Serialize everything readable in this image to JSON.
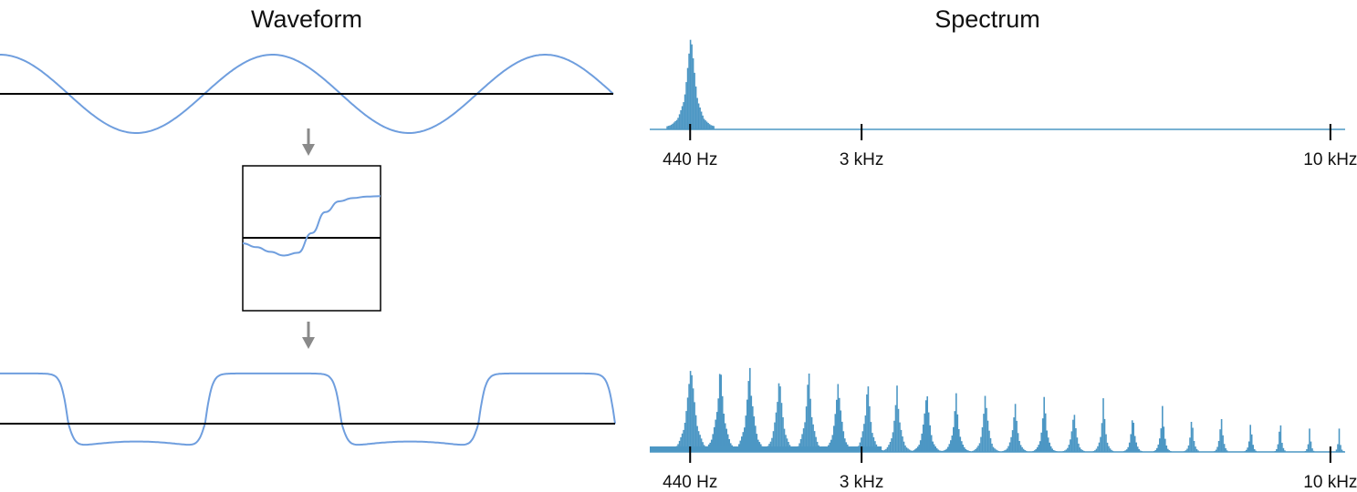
{
  "titles": {
    "left": "Waveform",
    "right": "Spectrum"
  },
  "colors": {
    "signal": "#6f9ede",
    "bars": "#4c97c4",
    "axis": "#000000",
    "arrow": "#8a8a8a"
  },
  "chart_data": [
    {
      "type": "line",
      "panel": "input-waveform",
      "title": "Waveform",
      "series": [
        {
          "shape": "sine",
          "cycles": 2.25,
          "phase_start": "positive-peak",
          "amplitude": 1.0
        }
      ],
      "ylim": [
        -1,
        1
      ]
    },
    {
      "type": "line",
      "panel": "transfer-curve",
      "x": [
        -1,
        -0.8,
        -0.6,
        -0.4,
        -0.2,
        0,
        0.2,
        0.4,
        0.6,
        0.8,
        1
      ],
      "y": [
        -0.12,
        -0.2,
        -0.3,
        -0.38,
        -0.32,
        0.1,
        0.55,
        0.78,
        0.85,
        0.88,
        0.89
      ],
      "xlim": [
        -1,
        1
      ],
      "ylim": [
        -1,
        1
      ]
    },
    {
      "type": "line",
      "panel": "output-waveform",
      "series": [
        {
          "shape": "clipped",
          "cycles": 2.25,
          "high_level": 0.95,
          "low_level": -0.45
        }
      ],
      "ylim": [
        -1,
        1
      ]
    },
    {
      "type": "bar",
      "panel": "input-spectrum",
      "title": "Spectrum",
      "fundamental_hz": 440,
      "peaks": [
        {
          "freq_hz": 440,
          "amplitude": 1.0
        }
      ],
      "xlim_hz": [
        0,
        10600
      ],
      "ticks": [
        {
          "freq_hz": 440,
          "label": "440 Hz"
        },
        {
          "freq_hz": 3000,
          "label": "3 kHz"
        },
        {
          "freq_hz": 10000,
          "label": "10 kHz"
        }
      ]
    },
    {
      "type": "bar",
      "panel": "output-spectrum",
      "fundamental_hz": 440,
      "peaks": [
        {
          "freq_hz": 440,
          "amplitude": 1.0
        },
        {
          "freq_hz": 880,
          "amplitude": 0.91
        },
        {
          "freq_hz": 1320,
          "amplitude": 0.93
        },
        {
          "freq_hz": 1760,
          "amplitude": 0.84
        },
        {
          "freq_hz": 2200,
          "amplitude": 0.86
        },
        {
          "freq_hz": 2640,
          "amplitude": 0.8
        },
        {
          "freq_hz": 3080,
          "amplitude": 0.76
        },
        {
          "freq_hz": 3520,
          "amplitude": 0.69
        },
        {
          "freq_hz": 3960,
          "amplitude": 0.73
        },
        {
          "freq_hz": 4400,
          "amplitude": 0.61
        },
        {
          "freq_hz": 4840,
          "amplitude": 0.69
        },
        {
          "freq_hz": 5280,
          "amplitude": 0.55
        },
        {
          "freq_hz": 5720,
          "amplitude": 0.61
        },
        {
          "freq_hz": 6160,
          "amplitude": 0.5
        },
        {
          "freq_hz": 6600,
          "amplitude": 0.56
        },
        {
          "freq_hz": 7040,
          "amplitude": 0.44
        },
        {
          "freq_hz": 7480,
          "amplitude": 0.51
        },
        {
          "freq_hz": 7920,
          "amplitude": 0.39
        },
        {
          "freq_hz": 8360,
          "amplitude": 0.45
        },
        {
          "freq_hz": 8800,
          "amplitude": 0.34
        },
        {
          "freq_hz": 9240,
          "amplitude": 0.39
        },
        {
          "freq_hz": 9680,
          "amplitude": 0.29
        },
        {
          "freq_hz": 10120,
          "amplitude": 0.24
        },
        {
          "freq_hz": 10560,
          "amplitude": 0.28
        }
      ],
      "xlim_hz": [
        0,
        10600
      ],
      "ticks": [
        {
          "freq_hz": 440,
          "label": "440 Hz"
        },
        {
          "freq_hz": 3000,
          "label": "3 kHz"
        },
        {
          "freq_hz": 10000,
          "label": "10 kHz"
        }
      ]
    }
  ]
}
